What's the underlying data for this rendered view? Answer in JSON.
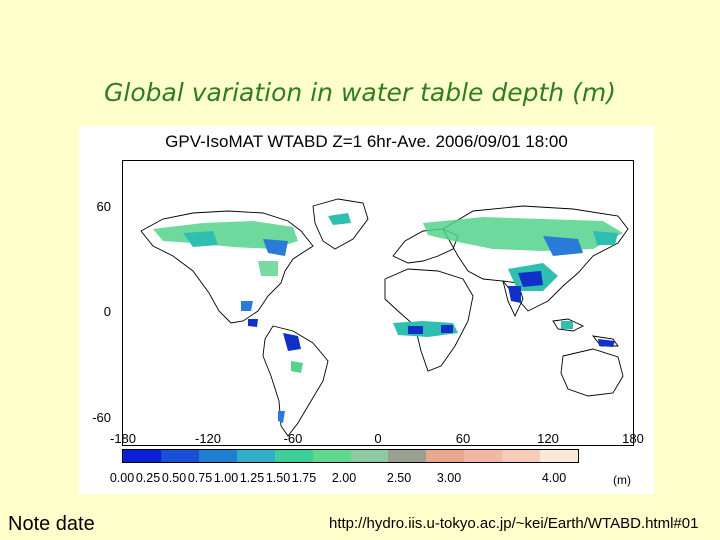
{
  "slide": {
    "title": "Global variation in water table depth (m)",
    "note": "Note date",
    "url": "http://hydro.iis.u-tokyo.ac.jp/~kei/Earth/WTABD.html#01"
  },
  "figure": {
    "title": "GPV-IsoMAT WTABD Z=1 6hr-Ave. 2006/09/01 18:00",
    "y_ticks": [
      "60",
      "0",
      "-60"
    ],
    "x_ticks": [
      "-180",
      "-120",
      "-60",
      "0",
      "60",
      "120",
      "180"
    ],
    "colorbar": {
      "labels": [
        "0.00",
        "0.25",
        "0.50",
        "0.75",
        "1.00",
        "1.25",
        "1.50",
        "1.75",
        "2.00",
        "2.50",
        "3.00",
        "4.00"
      ],
      "unit": "(m)",
      "colors": [
        "#0a1fd6",
        "#1a4fd8",
        "#1f7fd0",
        "#2fb0c8",
        "#3ccf9a",
        "#5fd88a",
        "#8cc8a0",
        "#9aa090",
        "#e8a890",
        "#f0b8a0",
        "#f6ccb8",
        "#fbe8d6"
      ]
    },
    "colors": {
      "deep_blue": "#1030c8",
      "mid_blue": "#2a7ad8",
      "teal": "#2fbfb0",
      "green": "#55d28c",
      "coast": "#000000",
      "border": "#444444"
    }
  }
}
